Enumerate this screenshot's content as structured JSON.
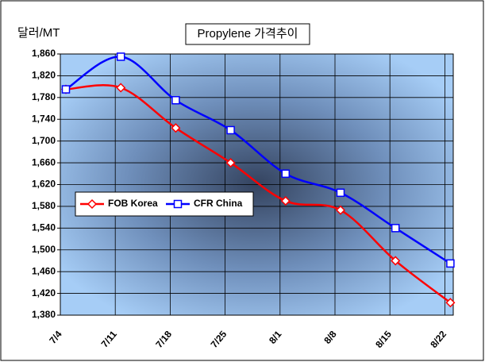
{
  "chart_data": {
    "type": "line",
    "title": "Propylene 가격추이",
    "y_label": "달러/MT",
    "categories": [
      "7/4",
      "7/11",
      "7/18",
      "7/25",
      "8/1",
      "8/8",
      "8/15",
      "8/22"
    ],
    "series": [
      {
        "name": "FOB Korea",
        "color": "#ff0000",
        "marker": "diamond",
        "values": [
          1795,
          1798,
          1724,
          1660,
          1590,
          1573,
          1480,
          1403
        ]
      },
      {
        "name": "CFR China",
        "color": "#0000ff",
        "marker": "square",
        "values": [
          1795,
          1855,
          1775,
          1720,
          1640,
          1605,
          1540,
          1475
        ]
      }
    ],
    "ylim": [
      1380,
      1860
    ],
    "yticks": [
      {
        "value": 1380,
        "label": "1,380"
      },
      {
        "value": 1420,
        "label": "1,420"
      },
      {
        "value": 1460,
        "label": "1,460"
      },
      {
        "value": 1500,
        "label": "1,500"
      },
      {
        "value": 1540,
        "label": "1,540"
      },
      {
        "value": 1580,
        "label": "1,580"
      },
      {
        "value": 1620,
        "label": "1,620"
      },
      {
        "value": 1660,
        "label": "1,660"
      },
      {
        "value": 1700,
        "label": "1,700"
      },
      {
        "value": 1740,
        "label": "1,740"
      },
      {
        "value": 1780,
        "label": "1,780"
      },
      {
        "value": 1820,
        "label": "1,820"
      },
      {
        "value": 1860,
        "label": "1,860"
      }
    ],
    "grid": true,
    "legend": "left"
  }
}
